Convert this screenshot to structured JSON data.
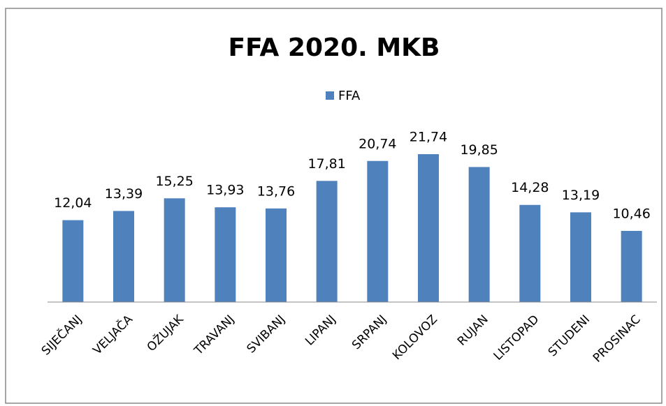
{
  "chart_data": {
    "type": "bar",
    "title": "FFA 2020. MKB",
    "categories": [
      "SIJEČANJ",
      "VELJAČA",
      "OŽUJAK",
      "TRAVANJ",
      "SVIBANJ",
      "LIPANJ",
      "SRPANJ",
      "KOLOVOZ",
      "RUJAN",
      "LISTOPAD",
      "STUDENI",
      "PROSINAC"
    ],
    "series": [
      {
        "name": "FFA",
        "color": "#4f81bd",
        "values": [
          12.04,
          13.39,
          15.25,
          13.93,
          13.76,
          17.81,
          20.74,
          21.74,
          19.85,
          14.28,
          13.19,
          10.46
        ],
        "value_labels": [
          "12,04",
          "13,39",
          "15,25",
          "13,93",
          "13,76",
          "17,81",
          "20,74",
          "21,74",
          "19,85",
          "14,28",
          "13,19",
          "10,46"
        ]
      }
    ],
    "legend": "top"
  }
}
